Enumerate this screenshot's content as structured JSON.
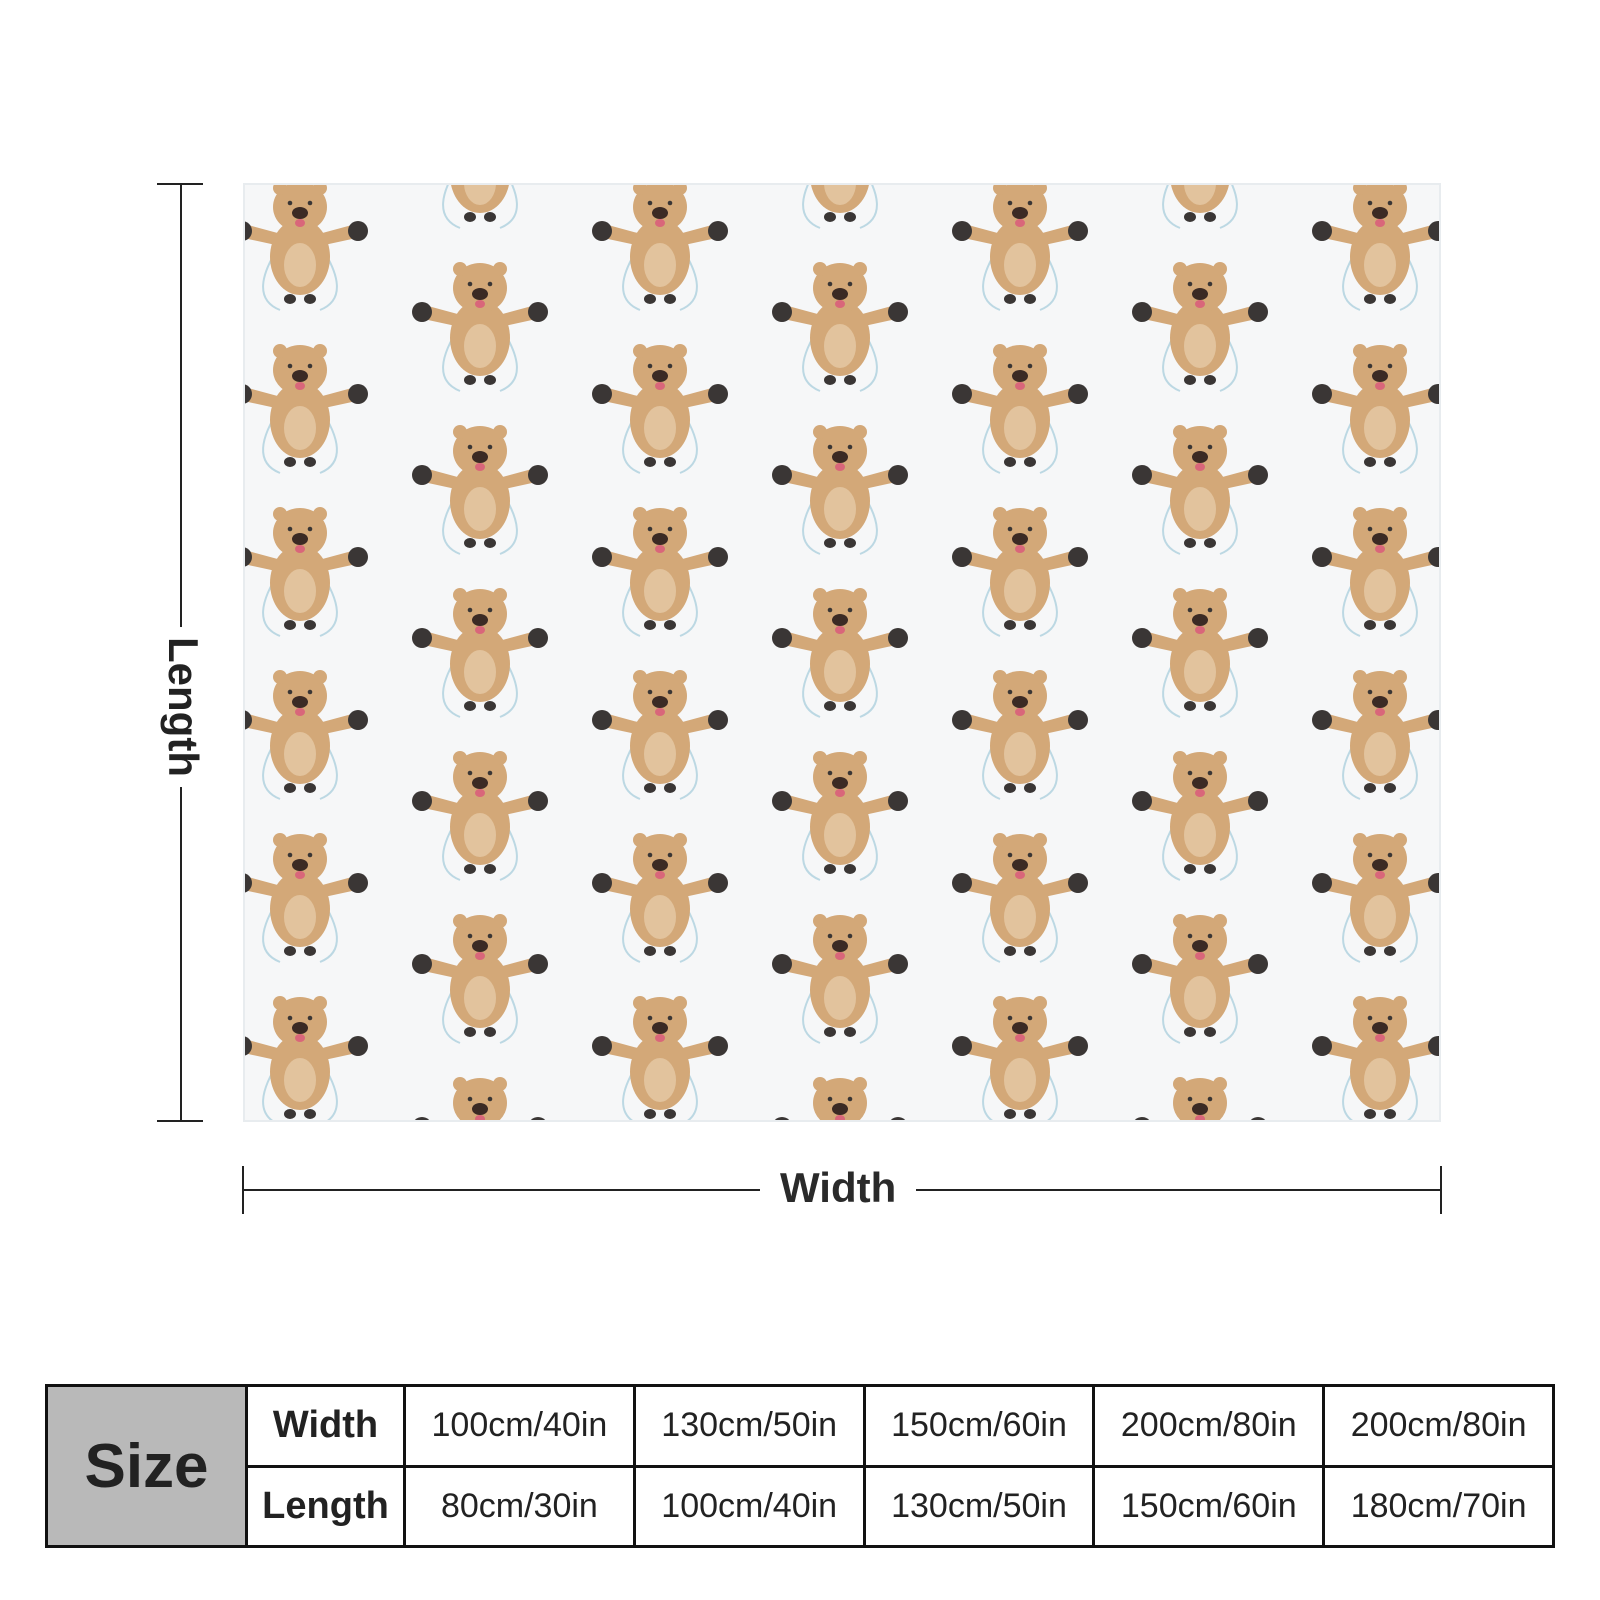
{
  "diagram": {
    "length_label": "Length",
    "width_label": "Width"
  },
  "pattern": {
    "background": "#f6f7f8",
    "fur": "#d3a878",
    "fur_light": "#e2c39d",
    "paw": "#3a3635",
    "nose": "#3b2a24",
    "tongue": "#d9667a"
  },
  "size_table": {
    "size_label": "Size",
    "width_label": "Width",
    "length_label": "Length",
    "widths": [
      "100cm/40in",
      "130cm/50in",
      "150cm/60in",
      "200cm/80in",
      "200cm/80in"
    ],
    "lengths": [
      "80cm/30in",
      "100cm/40in",
      "130cm/50in",
      "150cm/60in",
      "180cm/70in"
    ]
  }
}
